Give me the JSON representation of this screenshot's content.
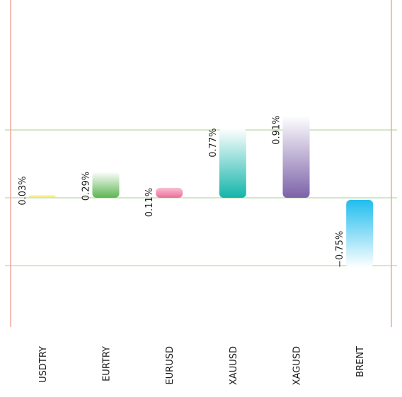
{
  "chart_data": {
    "type": "bar",
    "categories": [
      "USDTRY",
      "EURTRY",
      "EURUSD",
      "XAUUSD",
      "XAGUSD",
      "BRENT"
    ],
    "values": [
      0.03,
      0.29,
      0.11,
      0.77,
      0.91,
      -0.75
    ],
    "data_labels": [
      "0.03%",
      "0.29%",
      "0.11%",
      "0.77%",
      "0.91%",
      "−0.75%"
    ],
    "ylim": [
      -1.2,
      1.2
    ],
    "grid_lines_at": [
      -0.75,
      0,
      0.75
    ],
    "grid": true,
    "legend": "none",
    "title": "",
    "xlabel": "",
    "ylabel": "",
    "colors": {
      "border": "#f1a99a",
      "grid": "#b7dca0",
      "label": "#1a1a1a",
      "bars": [
        {
          "top": "#fff7c2",
          "bottom": "#f4e24a"
        },
        {
          "top": "#ffffff",
          "bottom": "#5cb651"
        },
        {
          "top": "#f9c0d3",
          "bottom": "#ec6d98"
        },
        {
          "top": "#ffffff",
          "bottom": "#13b5aa"
        },
        {
          "top": "#ffffff",
          "bottom": "#7c62a9"
        },
        {
          "top": "#21bdee",
          "bottom": "#ffffff"
        }
      ]
    }
  }
}
